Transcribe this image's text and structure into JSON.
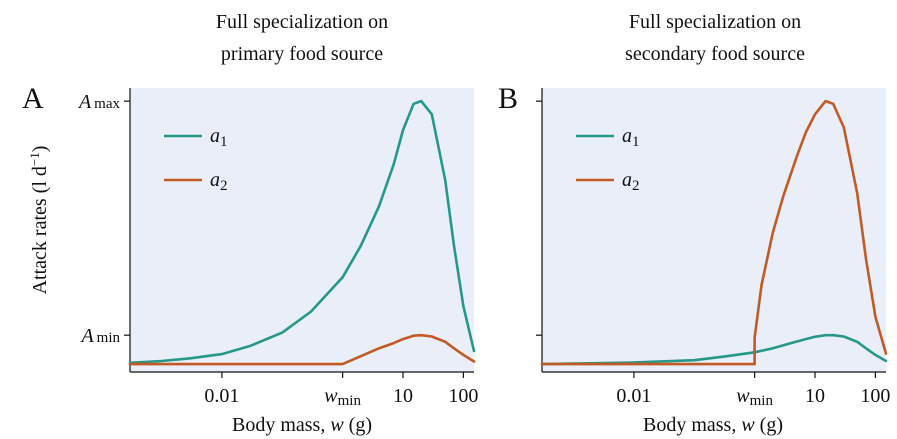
{
  "colors": {
    "a1": "#25988a",
    "a2": "#c25a25",
    "panel_bg": "#e9eef8"
  },
  "ylabel": {
    "main": "Attack rates (l d",
    "sup": "−1",
    "close": ")"
  },
  "xlabel": {
    "main": "Body mass, ",
    "var": "w",
    "unit": " (g)"
  },
  "chart_data": [
    {
      "type": "line",
      "panel": "A",
      "title": [
        "Full specialization on",
        "primary food source"
      ],
      "xscale": "log",
      "xticks": [
        {
          "label": "0.01",
          "x": 0.01
        },
        {
          "label": "w",
          "sub": "min",
          "x": 1
        },
        {
          "label": "10",
          "x": 10
        },
        {
          "label": "100",
          "x": 100
        }
      ],
      "yticks": [
        {
          "label": "A",
          "sub": "max",
          "y": 1
        },
        {
          "label": "A",
          "sub": "min",
          "y": 0.11
        }
      ],
      "xlim": [
        0.0003,
        150
      ],
      "ylim": [
        -0.03,
        1.05
      ],
      "legend": "top-left",
      "series": [
        {
          "name": "a",
          "sub": "1",
          "x": [
            0.0003,
            0.001,
            0.003,
            0.01,
            0.03,
            0.1,
            0.3,
            1,
            2,
            4,
            7,
            10,
            15,
            20,
            30,
            50,
            70,
            100,
            150
          ],
          "y": [
            0.005,
            0.012,
            0.022,
            0.038,
            0.07,
            0.12,
            0.2,
            0.33,
            0.45,
            0.6,
            0.76,
            0.89,
            0.99,
            1.0,
            0.95,
            0.7,
            0.45,
            0.22,
            0.05
          ]
        },
        {
          "name": "a",
          "sub": "2",
          "x": [
            0.0003,
            0.01,
            0.3,
            1,
            2,
            4,
            7,
            10,
            15,
            20,
            30,
            50,
            70,
            100,
            150
          ],
          "y": [
            0.0,
            0.0,
            0.0,
            0.0,
            0.03,
            0.06,
            0.08,
            0.095,
            0.108,
            0.11,
            0.105,
            0.085,
            0.06,
            0.035,
            0.01
          ]
        }
      ]
    },
    {
      "type": "line",
      "panel": "B",
      "title": [
        "Full specialization on",
        "secondary food source"
      ],
      "xscale": "log",
      "xticks": [
        {
          "label": "0.01",
          "x": 0.01
        },
        {
          "label": "w",
          "sub": "min",
          "x": 1
        },
        {
          "label": "10",
          "x": 10
        },
        {
          "label": "100",
          "x": 100
        }
      ],
      "yticks": [
        {
          "label": "",
          "y": 1
        },
        {
          "label": "",
          "y": 0.11
        }
      ],
      "xlim": [
        0.0003,
        150
      ],
      "ylim": [
        -0.03,
        1.05
      ],
      "legend": "top-left",
      "series": [
        {
          "name": "a",
          "sub": "1",
          "x": [
            0.0003,
            0.001,
            0.01,
            0.1,
            0.3,
            1,
            2,
            4,
            7,
            10,
            15,
            20,
            30,
            50,
            70,
            100,
            150
          ],
          "y": [
            0.0,
            0.002,
            0.006,
            0.015,
            0.028,
            0.045,
            0.06,
            0.08,
            0.095,
            0.104,
            0.11,
            0.11,
            0.105,
            0.085,
            0.06,
            0.035,
            0.012
          ]
        },
        {
          "name": "a",
          "sub": "2",
          "x": [
            0.0003,
            0.01,
            0.3,
            0.999,
            1,
            1.3,
            2,
            3,
            5,
            7,
            10,
            15,
            20,
            30,
            50,
            70,
            100,
            150
          ],
          "y": [
            0.0,
            0.0,
            0.0,
            0.0,
            0.1,
            0.3,
            0.5,
            0.64,
            0.79,
            0.88,
            0.95,
            1.0,
            0.99,
            0.9,
            0.65,
            0.4,
            0.18,
            0.04
          ]
        }
      ]
    }
  ]
}
